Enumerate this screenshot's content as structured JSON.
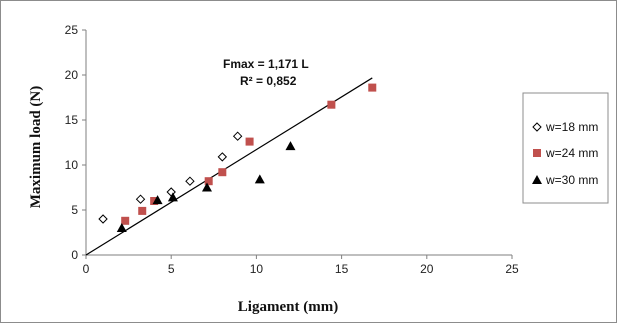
{
  "chart_data": {
    "type": "scatter",
    "title": "",
    "xlabel": "Ligament (mm)",
    "ylabel": "Maximum load (N)",
    "xlim": [
      0,
      25
    ],
    "ylim": [
      0,
      25
    ],
    "xticks": [
      0,
      5,
      10,
      15,
      20,
      25
    ],
    "yticks": [
      0,
      5,
      10,
      15,
      20,
      25
    ],
    "grid": false,
    "legend_position": "right",
    "series": [
      {
        "name": "w=18 mm",
        "marker": "diamond-open",
        "color": "#000000",
        "points": [
          [
            1.0,
            4.0
          ],
          [
            3.2,
            6.2
          ],
          [
            5.0,
            7.0
          ],
          [
            6.1,
            8.2
          ],
          [
            8.0,
            10.9
          ],
          [
            8.9,
            13.2
          ]
        ]
      },
      {
        "name": "w=24 mm",
        "marker": "square",
        "color": "#c0504d",
        "points": [
          [
            2.3,
            3.8
          ],
          [
            3.3,
            4.9
          ],
          [
            4.0,
            6.0
          ],
          [
            7.2,
            8.2
          ],
          [
            8.0,
            9.2
          ],
          [
            9.6,
            12.6
          ],
          [
            14.4,
            16.7
          ],
          [
            16.8,
            18.6
          ]
        ]
      },
      {
        "name": "w=30 mm",
        "marker": "triangle",
        "color": "#000000",
        "points": [
          [
            2.1,
            3.0
          ],
          [
            4.2,
            6.1
          ],
          [
            5.1,
            6.4
          ],
          [
            7.1,
            7.5
          ],
          [
            10.2,
            8.4
          ],
          [
            12.0,
            12.1
          ]
        ]
      }
    ],
    "trendline": {
      "slope": 1.171,
      "x_range": [
        0,
        16.8
      ],
      "color": "#000000"
    },
    "annotations": [
      "Fmax = 1,171 L",
      "R² = 0,852"
    ]
  }
}
